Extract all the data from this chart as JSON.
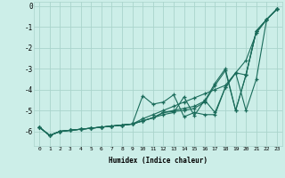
{
  "title": "",
  "xlabel": "Humidex (Indice chaleur)",
  "ylabel": "",
  "background_color": "#cceee8",
  "line_color": "#1a6b5a",
  "grid_color": "#aad4cc",
  "xlim": [
    -0.5,
    23.5
  ],
  "ylim": [
    -6.7,
    0.2
  ],
  "xtick_labels": [
    "0",
    "1",
    "2",
    "3",
    "4",
    "5",
    "6",
    "7",
    "8",
    "9",
    "10",
    "11",
    "12",
    "13",
    "14",
    "15",
    "16",
    "17",
    "18",
    "19",
    "20",
    "21",
    "22",
    "23"
  ],
  "ytick_vals": [
    0,
    -1,
    -2,
    -3,
    -4,
    -5,
    -6
  ],
  "series": [
    {
      "x": [
        0,
        1,
        2,
        3,
        4,
        5,
        6,
        7,
        8,
        9,
        10,
        11,
        12,
        13,
        14,
        15,
        16,
        17,
        18,
        19,
        20,
        21,
        22,
        23
      ],
      "y": [
        -5.8,
        -6.2,
        -6.0,
        -5.95,
        -5.9,
        -5.85,
        -5.8,
        -5.75,
        -5.7,
        -5.65,
        -5.4,
        -5.2,
        -5.0,
        -4.8,
        -4.6,
        -4.4,
        -4.2,
        -4.0,
        -3.8,
        -3.2,
        -2.6,
        -1.3,
        -0.65,
        -0.15
      ]
    },
    {
      "x": [
        0,
        1,
        2,
        3,
        4,
        5,
        6,
        7,
        8,
        9,
        10,
        11,
        12,
        13,
        14,
        15,
        16,
        17,
        18,
        19,
        20,
        21,
        22,
        23
      ],
      "y": [
        -5.8,
        -6.2,
        -6.0,
        -5.95,
        -5.9,
        -5.85,
        -5.8,
        -5.75,
        -5.7,
        -5.65,
        -4.3,
        -4.7,
        -4.6,
        -4.25,
        -5.3,
        -5.1,
        -5.2,
        -5.2,
        -3.9,
        -3.2,
        -5.0,
        -3.5,
        -0.65,
        -0.15
      ]
    },
    {
      "x": [
        0,
        1,
        2,
        3,
        4,
        5,
        6,
        7,
        8,
        9,
        10,
        11,
        12,
        13,
        14,
        15,
        16,
        17,
        18,
        19,
        20,
        21,
        22,
        23
      ],
      "y": [
        -5.8,
        -6.2,
        -6.0,
        -5.95,
        -5.9,
        -5.85,
        -5.8,
        -5.75,
        -5.7,
        -5.65,
        -5.5,
        -5.35,
        -5.2,
        -5.1,
        -4.35,
        -5.25,
        -4.5,
        -5.1,
        -3.9,
        -3.2,
        -3.3,
        -1.2,
        -0.65,
        -0.15
      ]
    },
    {
      "x": [
        0,
        1,
        2,
        3,
        4,
        5,
        6,
        7,
        8,
        9,
        10,
        11,
        12,
        13,
        14,
        15,
        16,
        17,
        18,
        19,
        20,
        21,
        22,
        23
      ],
      "y": [
        -5.8,
        -6.2,
        -6.0,
        -5.95,
        -5.9,
        -5.85,
        -5.8,
        -5.75,
        -5.7,
        -5.65,
        -5.5,
        -5.35,
        -5.1,
        -5.05,
        -5.0,
        -4.9,
        -4.6,
        -3.8,
        -3.1,
        -5.0,
        -3.3,
        -1.2,
        -0.65,
        -0.15
      ]
    },
    {
      "x": [
        0,
        1,
        2,
        3,
        4,
        5,
        6,
        7,
        8,
        9,
        10,
        11,
        12,
        13,
        14,
        15,
        16,
        17,
        18,
        19,
        20,
        21,
        22,
        23
      ],
      "y": [
        -5.8,
        -6.2,
        -6.0,
        -5.95,
        -5.9,
        -5.85,
        -5.8,
        -5.75,
        -5.7,
        -5.65,
        -5.5,
        -5.35,
        -5.1,
        -5.0,
        -4.9,
        -4.8,
        -4.55,
        -3.7,
        -3.0,
        -5.0,
        -3.3,
        -1.2,
        -0.65,
        -0.15
      ]
    }
  ]
}
